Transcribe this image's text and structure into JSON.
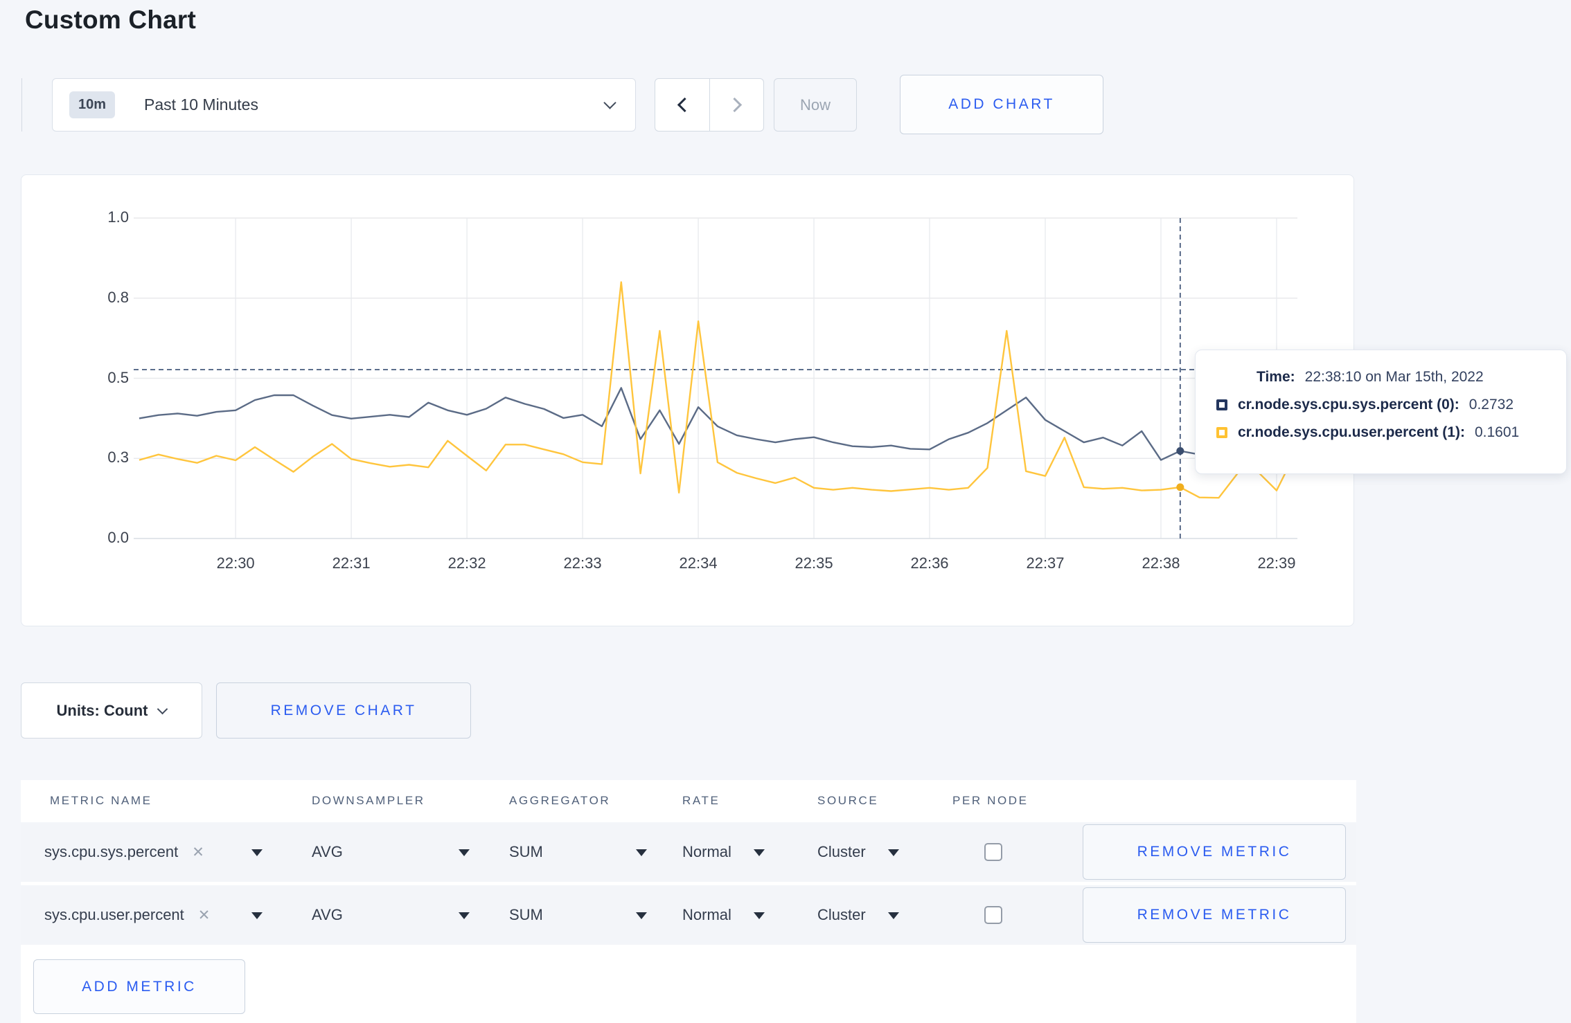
{
  "title": "Custom Chart",
  "accent_color": "#2b5cf0",
  "toolbar": {
    "time_badge": "10m",
    "time_range_label": "Past 10 Minutes",
    "now_label": "Now",
    "add_chart_label": "ADD CHART"
  },
  "chart_footer": {
    "units_label": "Units: Count",
    "remove_chart_label": "REMOVE CHART"
  },
  "tooltip": {
    "time_label": "Time:",
    "time_value": "22:38:10 on Mar 15th, 2022",
    "rows": [
      {
        "name": "cr.node.sys.cpu.sys.percent (0):",
        "value": "0.2732",
        "color": "#24365e"
      },
      {
        "name": "cr.node.sys.cpu.user.percent (1):",
        "value": "0.1601",
        "color": "#ffc232"
      }
    ]
  },
  "chart_data": {
    "type": "line",
    "title": "",
    "xlabel": "",
    "ylabel": "",
    "ylim": [
      0,
      1
    ],
    "grid": true,
    "x_start": "22:29:10",
    "x_interval_seconds": 10,
    "xticks": [
      "22:30",
      "22:31",
      "22:32",
      "22:33",
      "22:34",
      "22:35",
      "22:36",
      "22:37",
      "22:38",
      "22:39"
    ],
    "yticks": {
      "values": [
        0,
        0.25,
        0.5,
        0.75,
        1.0
      ],
      "labels": [
        "0.0",
        "0.3",
        "0.5",
        "0.8",
        "1.0"
      ]
    },
    "series": [
      {
        "name": "cr.node.sys.cpu.sys.percent (0)",
        "color": "#5b6b86",
        "dot_color": "#3a4d6e",
        "values": [
          0.375,
          0.385,
          0.39,
          0.383,
          0.395,
          0.4,
          0.432,
          0.447,
          0.447,
          0.415,
          0.385,
          0.374,
          0.38,
          0.386,
          0.379,
          0.424,
          0.4,
          0.386,
          0.405,
          0.44,
          0.42,
          0.404,
          0.376,
          0.386,
          0.35,
          0.47,
          0.31,
          0.4,
          0.295,
          0.41,
          0.35,
          0.322,
          0.31,
          0.3,
          0.31,
          0.316,
          0.3,
          0.288,
          0.285,
          0.29,
          0.28,
          0.278,
          0.31,
          0.33,
          0.36,
          0.4,
          0.44,
          0.37,
          0.335,
          0.3,
          0.315,
          0.29,
          0.335,
          0.245,
          0.2732,
          0.262,
          0.27,
          0.3,
          0.31,
          0.3,
          0.315
        ]
      },
      {
        "name": "cr.node.sys.cpu.user.percent (1)",
        "color": "#ffc53d",
        "dot_color": "#f0ae1e",
        "values": [
          0.245,
          0.262,
          0.248,
          0.236,
          0.258,
          0.244,
          0.285,
          0.246,
          0.208,
          0.255,
          0.295,
          0.248,
          0.235,
          0.224,
          0.23,
          0.222,
          0.305,
          0.258,
          0.212,
          0.293,
          0.293,
          0.278,
          0.263,
          0.238,
          0.232,
          0.8,
          0.203,
          0.648,
          0.143,
          0.678,
          0.238,
          0.205,
          0.188,
          0.173,
          0.19,
          0.158,
          0.152,
          0.158,
          0.152,
          0.148,
          0.153,
          0.158,
          0.152,
          0.158,
          0.22,
          0.648,
          0.21,
          0.195,
          0.315,
          0.16,
          0.155,
          0.158,
          0.15,
          0.152,
          0.1601,
          0.128,
          0.127,
          0.205,
          0.21,
          0.15,
          0.27
        ]
      }
    ],
    "crosshair": {
      "x_index": 54,
      "time": "22:38:10",
      "hline_value": 0.527,
      "color": "#46597c"
    },
    "hover_values": {
      "sys": 0.2732,
      "user": 0.1601
    },
    "legend_position": "tooltip"
  },
  "metrics_table": {
    "headers": [
      "METRIC NAME",
      "DOWNSAMPLER",
      "AGGREGATOR",
      "RATE",
      "SOURCE",
      "PER NODE"
    ],
    "rows": [
      {
        "name": "sys.cpu.sys.percent",
        "downsampler": "AVG",
        "aggregator": "SUM",
        "rate": "Normal",
        "source": "Cluster",
        "per_node": false,
        "remove_label": "REMOVE METRIC"
      },
      {
        "name": "sys.cpu.user.percent",
        "downsampler": "AVG",
        "aggregator": "SUM",
        "rate": "Normal",
        "source": "Cluster",
        "per_node": false,
        "remove_label": "REMOVE METRIC"
      }
    ],
    "add_metric_label": "ADD METRIC"
  }
}
